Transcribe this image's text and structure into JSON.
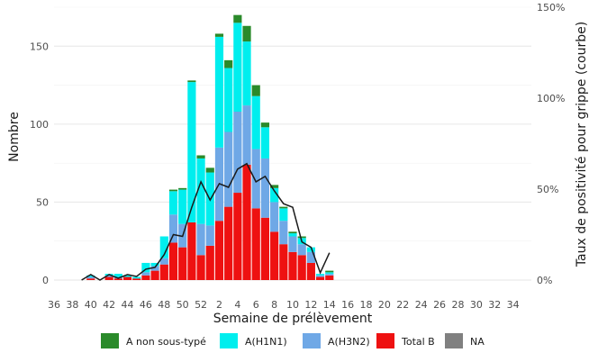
{
  "chart_data": {
    "type": "bar",
    "stacked": true,
    "overlay_line": "positivity",
    "xlabel": "Semaine de prélèvement",
    "ylabel": "Nombre",
    "y2label": "Taux de positivité pour grippe (courbe)",
    "ylim": [
      0,
      175
    ],
    "y2lim": [
      0,
      1.5
    ],
    "yticks": [
      0,
      50,
      100,
      150
    ],
    "y2ticks": [
      0,
      0.5,
      1.0,
      1.5
    ],
    "y2ticklabels": [
      "0%",
      "50%",
      "100%",
      "150%"
    ],
    "grid": true,
    "legend_position": "bottom",
    "x_tick_labels": [
      "36",
      "38",
      "40",
      "42",
      "44",
      "46",
      "48",
      "50",
      "52",
      "2",
      "4",
      "6",
      "8",
      "10",
      "12",
      "14",
      "16",
      "18",
      "20",
      "22",
      "24",
      "26",
      "28",
      "30",
      "32",
      "34"
    ],
    "categories": [
      "36",
      "37",
      "38",
      "39",
      "40",
      "41",
      "42",
      "43",
      "44",
      "45",
      "46",
      "47",
      "48",
      "49",
      "50",
      "51",
      "52",
      "1",
      "2",
      "3",
      "4",
      "5",
      "6",
      "7",
      "8",
      "9",
      "10",
      "11",
      "12",
      "13",
      "14",
      "15",
      "16",
      "17",
      "18",
      "19",
      "20",
      "21",
      "22",
      "23",
      "24",
      "25",
      "26",
      "27",
      "28",
      "29",
      "30",
      "31",
      "32",
      "33",
      "34",
      "35"
    ],
    "series": [
      {
        "name": "Total B",
        "color": "#ee1111",
        "values": [
          0,
          0,
          0,
          0,
          1,
          0,
          2,
          1,
          2,
          1,
          3,
          6,
          10,
          24,
          21,
          37,
          16,
          22,
          38,
          47,
          56,
          74,
          46,
          40,
          31,
          23,
          18,
          16,
          11,
          2,
          3,
          0,
          0,
          0,
          0,
          0,
          0,
          0,
          0,
          0,
          0,
          0,
          0,
          0,
          0,
          0,
          0,
          0,
          0,
          0,
          0,
          0
        ]
      },
      {
        "name": "A(H3N2)",
        "color": "#6fa8e6",
        "values": [
          0,
          0,
          0,
          0,
          1,
          0,
          1,
          1,
          0,
          0,
          2,
          3,
          4,
          18,
          15,
          0,
          20,
          13,
          47,
          48,
          52,
          38,
          38,
          38,
          19,
          15,
          10,
          7,
          7,
          1,
          1,
          0,
          0,
          0,
          0,
          0,
          0,
          0,
          0,
          0,
          0,
          0,
          0,
          0,
          0,
          0,
          0,
          0,
          0,
          0,
          0,
          0
        ]
      },
      {
        "name": "A(H1N1)",
        "color": "#00eeee",
        "values": [
          0,
          0,
          0,
          0,
          1,
          0,
          1,
          2,
          1,
          1,
          6,
          2,
          14,
          15,
          22,
          90,
          42,
          34,
          71,
          41,
          57,
          41,
          34,
          20,
          9,
          8,
          2,
          4,
          3,
          1,
          1,
          0,
          0,
          0,
          0,
          0,
          0,
          0,
          0,
          0,
          0,
          0,
          0,
          0,
          0,
          0,
          0,
          0,
          0,
          0,
          0,
          0
        ]
      },
      {
        "name": "A non sous-typé",
        "color": "#2a8a2a",
        "values": [
          0,
          0,
          0,
          0,
          0,
          0,
          0,
          0,
          0,
          0,
          0,
          0,
          0,
          1,
          1,
          1,
          2,
          3,
          2,
          5,
          5,
          10,
          7,
          3,
          2,
          1,
          1,
          1,
          0,
          0,
          1,
          0,
          0,
          0,
          0,
          0,
          0,
          0,
          0,
          0,
          0,
          0,
          0,
          0,
          0,
          0,
          0,
          0,
          0,
          0,
          0,
          0
        ]
      },
      {
        "name": "NA",
        "color": "#808080",
        "values": [
          0,
          0,
          0,
          0,
          0,
          0,
          0,
          0,
          0,
          0,
          0,
          0,
          0,
          0,
          0,
          0,
          0,
          0,
          0,
          0,
          0,
          0,
          0,
          0,
          0,
          0,
          0,
          0,
          0,
          0,
          0,
          0,
          0,
          0,
          0,
          0,
          0,
          0,
          0,
          0,
          0,
          0,
          0,
          0,
          0,
          0,
          0,
          0,
          0,
          0,
          0,
          0
        ]
      }
    ],
    "line_series": {
      "color": "#1a1a1a",
      "x": [
        "39",
        "40",
        "41",
        "42",
        "43",
        "44",
        "45",
        "46",
        "47",
        "48",
        "49",
        "50",
        "51",
        "52",
        "1",
        "2",
        "3",
        "4",
        "5",
        "6",
        "7",
        "8",
        "9",
        "10",
        "11",
        "12",
        "13",
        "14"
      ],
      "values": [
        0.0,
        0.03,
        0.0,
        0.03,
        0.01,
        0.03,
        0.02,
        0.06,
        0.07,
        0.14,
        0.25,
        0.24,
        0.4,
        0.54,
        0.44,
        0.53,
        0.51,
        0.61,
        0.64,
        0.54,
        0.57,
        0.49,
        0.42,
        0.4,
        0.21,
        0.18,
        0.04,
        0.15
      ]
    },
    "legend": [
      "A non sous-typé",
      "A(H1N1)",
      "A(H3N2)",
      "Total B",
      "NA"
    ]
  }
}
